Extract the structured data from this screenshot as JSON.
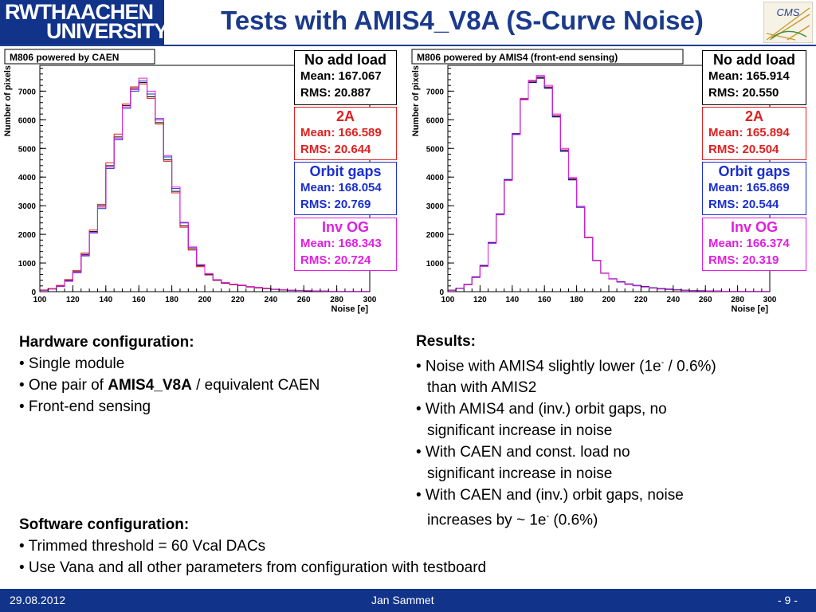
{
  "header": {
    "logo_line1": "RWTHAACHEN",
    "logo_line2": "UNIVERSITY",
    "title": "Tests with AMIS4_V8A (S-Curve Noise)",
    "cms_logo_text": "CMS"
  },
  "chart_data": [
    {
      "type": "histogram",
      "title": "M806 powered by CAEN",
      "xlabel": "Noise [e]",
      "ylabel": "Number of pixels",
      "xlim": [
        100,
        300
      ],
      "ylim": [
        0,
        7900
      ],
      "xticks": [
        "100",
        "120",
        "140",
        "160",
        "180",
        "200",
        "220",
        "240",
        "260",
        "280",
        "300"
      ],
      "yticks": [
        "0",
        "1000",
        "2000",
        "3000",
        "4000",
        "5000",
        "6000",
        "7000"
      ],
      "bin_edges": [
        100,
        105,
        110,
        115,
        120,
        125,
        130,
        135,
        140,
        145,
        150,
        155,
        160,
        165,
        170,
        175,
        180,
        185,
        190,
        195,
        200,
        205,
        210,
        215,
        220,
        225,
        230,
        235,
        240,
        245,
        250,
        255,
        260,
        265,
        270,
        275,
        280,
        285,
        290,
        295,
        300
      ],
      "series": [
        {
          "name": "No add load",
          "color": "#000000",
          "mean": "Mean: 167.067",
          "rms": "RMS: 20.887",
          "values": [
            50,
            100,
            200,
            400,
            700,
            1300,
            2100,
            3000,
            4400,
            5400,
            6500,
            7100,
            7300,
            6800,
            5900,
            4600,
            3500,
            2300,
            1500,
            900,
            600,
            400,
            300,
            250,
            220,
            170,
            140,
            110,
            80,
            60,
            50,
            40,
            30,
            20,
            20,
            10,
            10,
            10,
            10,
            10
          ]
        },
        {
          "name": "2A",
          "color": "#e02020",
          "mean": "Mean: 166.589",
          "rms": "RMS: 20.644",
          "values": [
            60,
            110,
            220,
            420,
            740,
            1350,
            2150,
            3050,
            4500,
            5500,
            6550,
            7150,
            7250,
            6750,
            5850,
            4550,
            3450,
            2250,
            1450,
            870,
            580,
            390,
            290,
            240,
            210,
            160,
            130,
            100,
            80,
            60,
            50,
            40,
            30,
            20,
            20,
            10,
            10,
            10,
            10,
            10
          ]
        },
        {
          "name": "Orbit gaps",
          "color": "#1a2fcf",
          "mean": "Mean: 168.054",
          "rms": "RMS: 20.769",
          "values": [
            40,
            90,
            180,
            360,
            660,
            1250,
            2050,
            2900,
            4300,
            5300,
            6400,
            7000,
            7350,
            6900,
            6000,
            4700,
            3600,
            2400,
            1550,
            940,
            620,
            410,
            310,
            260,
            225,
            175,
            145,
            115,
            85,
            65,
            50,
            40,
            30,
            20,
            20,
            10,
            10,
            10,
            10,
            10
          ]
        },
        {
          "name": "Inv OG",
          "color": "#e020e0",
          "mean": "Mean: 168.343",
          "rms": "RMS: 20.724",
          "values": [
            45,
            95,
            190,
            380,
            680,
            1280,
            2080,
            2950,
            4350,
            5350,
            6450,
            7050,
            7450,
            7000,
            6050,
            4750,
            3650,
            2420,
            1560,
            950,
            630,
            420,
            320,
            265,
            230,
            180,
            150,
            120,
            90,
            70,
            55,
            45,
            35,
            25,
            20,
            15,
            10,
            10,
            10,
            10
          ]
        }
      ]
    },
    {
      "type": "histogram",
      "title": "M806 powered by AMIS4 (front-end sensing)",
      "xlabel": "Noise [e]",
      "ylabel": "Number of pixels",
      "xlim": [
        100,
        300
      ],
      "ylim": [
        0,
        7900
      ],
      "xticks": [
        "100",
        "120",
        "140",
        "160",
        "180",
        "200",
        "220",
        "240",
        "260",
        "280",
        "300"
      ],
      "yticks": [
        "0",
        "1000",
        "2000",
        "3000",
        "4000",
        "5000",
        "6000",
        "7000"
      ],
      "bin_edges": [
        100,
        105,
        110,
        115,
        120,
        125,
        130,
        135,
        140,
        145,
        150,
        155,
        160,
        165,
        170,
        175,
        180,
        185,
        190,
        195,
        200,
        205,
        210,
        215,
        220,
        225,
        230,
        235,
        240,
        245,
        250,
        255,
        260,
        265,
        270,
        275,
        280,
        285,
        290,
        295,
        300
      ],
      "series": [
        {
          "name": "No add load",
          "color": "#000000",
          "mean": "Mean: 165.914",
          "rms": "RMS: 20.550",
          "values": [
            50,
            120,
            250,
            500,
            900,
            1700,
            2700,
            3900,
            5500,
            6700,
            7300,
            7450,
            7100,
            6100,
            4900,
            3900,
            2950,
            1900,
            1100,
            650,
            450,
            350,
            270,
            220,
            180,
            140,
            110,
            90,
            70,
            50,
            40,
            30,
            20,
            20,
            10,
            10,
            10,
            10,
            10,
            10
          ]
        },
        {
          "name": "2A",
          "color": "#e02020",
          "mean": "Mean: 165.894",
          "rms": "RMS: 20.504",
          "values": [
            55,
            125,
            260,
            520,
            920,
            1720,
            2720,
            3920,
            5520,
            6750,
            7350,
            7500,
            7150,
            6150,
            4950,
            3950,
            2950,
            1880,
            1080,
            640,
            440,
            340,
            260,
            210,
            170,
            130,
            100,
            80,
            60,
            50,
            40,
            30,
            20,
            20,
            10,
            10,
            10,
            10,
            10,
            10
          ]
        },
        {
          "name": "Orbit gaps",
          "color": "#1a2fcf",
          "mean": "Mean: 165.869",
          "rms": "RMS: 20.544",
          "values": [
            50,
            120,
            250,
            510,
            910,
            1710,
            2710,
            3910,
            5510,
            6720,
            7320,
            7480,
            7120,
            6120,
            4920,
            3920,
            2940,
            1890,
            1090,
            650,
            450,
            345,
            265,
            215,
            175,
            135,
            105,
            85,
            65,
            50,
            40,
            30,
            20,
            20,
            10,
            10,
            10,
            10,
            10,
            10
          ]
        },
        {
          "name": "Inv OG",
          "color": "#e020e0",
          "mean": "Mean: 166.374",
          "rms": "RMS: 20.319",
          "values": [
            45,
            110,
            240,
            490,
            880,
            1680,
            2680,
            3880,
            5480,
            6700,
            7380,
            7550,
            7200,
            6200,
            5000,
            3980,
            2980,
            1900,
            1100,
            650,
            440,
            330,
            250,
            200,
            160,
            120,
            90,
            70,
            55,
            45,
            35,
            25,
            20,
            15,
            10,
            10,
            10,
            10,
            10,
            10
          ]
        }
      ]
    }
  ],
  "hardware": {
    "heading": "Hardware configuration:",
    "bullet1": "• Single module",
    "bullet2_prefix": "• One pair of ",
    "bullet2_bold": "AMIS4_V8A",
    "bullet2_suffix": " / equivalent CAEN",
    "bullet3": "• Front-end sensing"
  },
  "software": {
    "heading": "Software configuration:",
    "bullet1": "• Trimmed threshold = 60 Vcal DACs",
    "bullet2": "• Use Vana and all other parameters from configuration with testboard"
  },
  "results": {
    "heading": "Results:",
    "r1a_prefix": "• Noise with AMIS4 slightly lower (1e",
    "r1a_sup": "-",
    "r1a_suffix": " / 0.6%)",
    "r1b": "than with AMIS2",
    "r2a": "• With AMIS4 and (inv.) orbit gaps, no",
    "r2b": "significant increase in noise",
    "r3a": "• With CAEN and const. load no",
    "r3b": "significant increase in noise",
    "r4a": "• With CAEN and (inv.) orbit gaps, noise",
    "r4b_prefix": "increases by ~ 1e",
    "r4b_sup": "-",
    "r4b_suffix": " (0.6%)"
  },
  "footer": {
    "date": "29.08.2012",
    "author": "Jan Sammet",
    "page": "- 9 -"
  }
}
